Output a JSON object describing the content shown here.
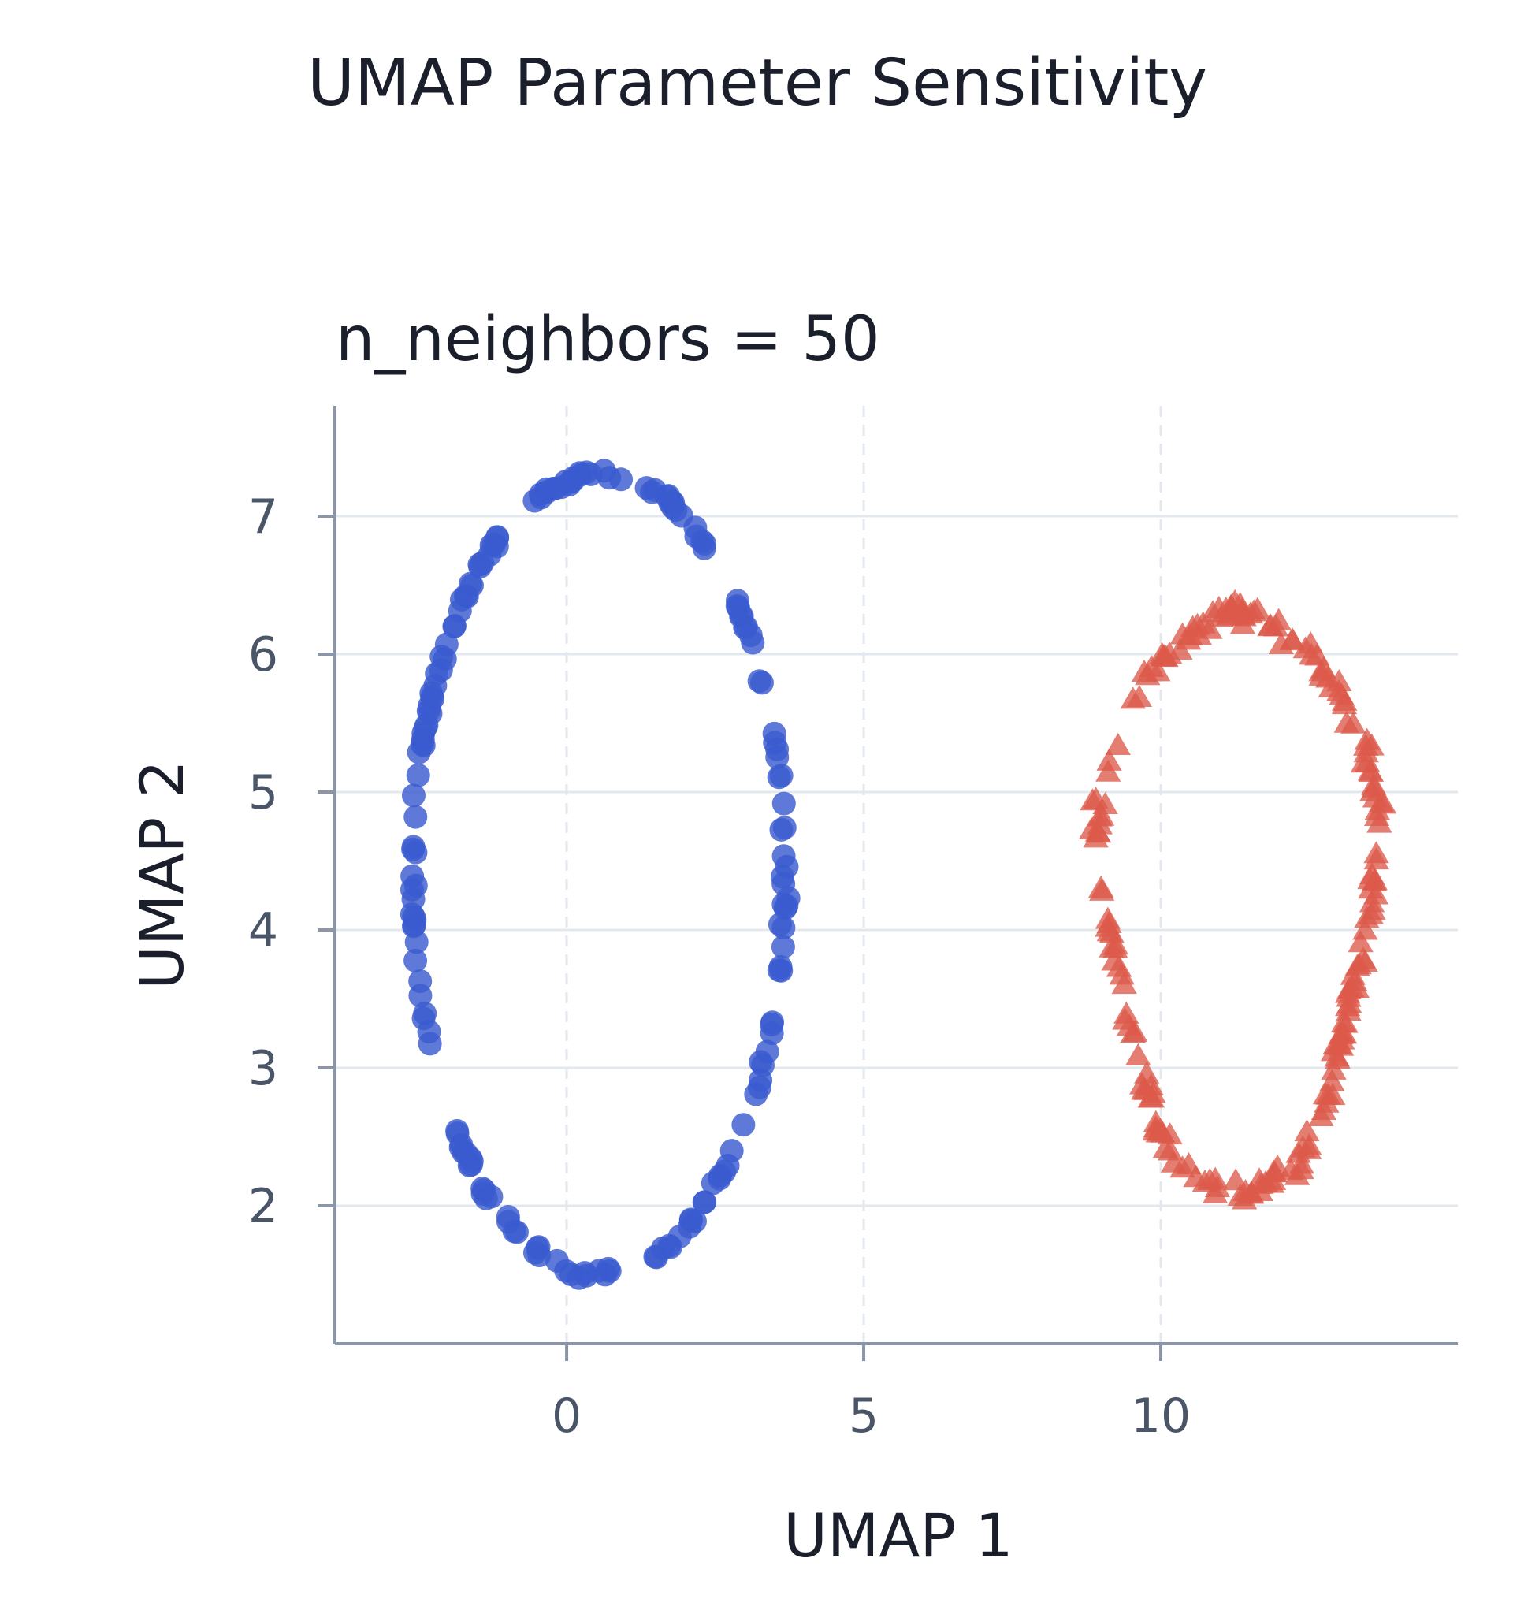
{
  "chart_data": {
    "type": "scatter",
    "title": "UMAP Parameter Sensitivity",
    "subtitle": "n_neighbors = 50",
    "xlabel": "UMAP 1",
    "ylabel": "UMAP 2",
    "xlim": [
      -3.9,
      15
    ],
    "ylim": [
      1.0,
      7.8
    ],
    "xticks": [
      0,
      5,
      10
    ],
    "yticks": [
      2,
      3,
      4,
      5,
      6,
      7
    ],
    "grid": true,
    "legend": "none",
    "colors": {
      "circle": "#3a5bd0",
      "triangle": "#dc5a4a",
      "axis": "#8a96a8",
      "grid": "#e3e8ef",
      "tick_text": "#4a5568"
    },
    "series": [
      {
        "marker": "circle",
        "shape_desc": "ring",
        "center": [
          0.55,
          4.4
        ],
        "radii": [
          3.2,
          2.9
        ],
        "count": 190,
        "gaps": [
          [
            3.6,
            3.9
          ],
          [
            4.6,
            4.8
          ],
          [
            0.85,
            0.98
          ],
          [
            0.62,
            0.66
          ]
        ],
        "points": [
          [
            -0.6,
            7.25
          ],
          [
            -0.3,
            7.3
          ],
          [
            0.2,
            7.3
          ],
          [
            0.5,
            7.28
          ],
          [
            1.0,
            7.2
          ],
          [
            1.5,
            7.05
          ],
          [
            2.2,
            6.75
          ],
          [
            2.8,
            6.3
          ],
          [
            3.2,
            5.8
          ],
          [
            3.5,
            5.2
          ],
          [
            3.7,
            4.6
          ],
          [
            3.8,
            4.0
          ],
          [
            3.3,
            3.5
          ],
          [
            3.0,
            2.9
          ],
          [
            2.6,
            2.4
          ],
          [
            2.2,
            2.0
          ],
          [
            1.3,
            1.6
          ],
          [
            0.5,
            1.55
          ],
          [
            -0.1,
            1.55
          ],
          [
            -0.6,
            1.8
          ],
          [
            -1.1,
            2.2
          ],
          [
            -1.6,
            2.6
          ],
          [
            -2.0,
            3.0
          ],
          [
            -2.3,
            3.35
          ],
          [
            -2.4,
            3.9
          ],
          [
            -2.6,
            4.3
          ],
          [
            -2.6,
            4.8
          ],
          [
            -2.4,
            5.3
          ],
          [
            -2.3,
            5.8
          ],
          [
            -2.0,
            6.3
          ],
          [
            -1.5,
            6.7
          ],
          [
            -1.0,
            7.05
          ]
        ]
      },
      {
        "marker": "triangle",
        "shape_desc": "ring",
        "center": [
          11.3,
          4.2
        ],
        "radii": [
          2.25,
          2.1
        ],
        "count": 210,
        "points": [
          [
            10.0,
            6.2
          ],
          [
            11.0,
            6.4
          ],
          [
            12.0,
            6.4
          ],
          [
            12.7,
            5.9
          ],
          [
            13.3,
            5.3
          ],
          [
            13.5,
            4.7
          ],
          [
            13.3,
            4.0
          ],
          [
            13.3,
            3.2
          ],
          [
            13.0,
            2.6
          ],
          [
            12.5,
            2.1
          ],
          [
            11.8,
            2.0
          ],
          [
            11.0,
            2.7
          ],
          [
            10.2,
            2.4
          ],
          [
            9.8,
            3.1
          ],
          [
            9.3,
            3.8
          ],
          [
            9.0,
            4.5
          ],
          [
            9.3,
            5.2
          ],
          [
            9.8,
            5.8
          ]
        ]
      }
    ]
  }
}
